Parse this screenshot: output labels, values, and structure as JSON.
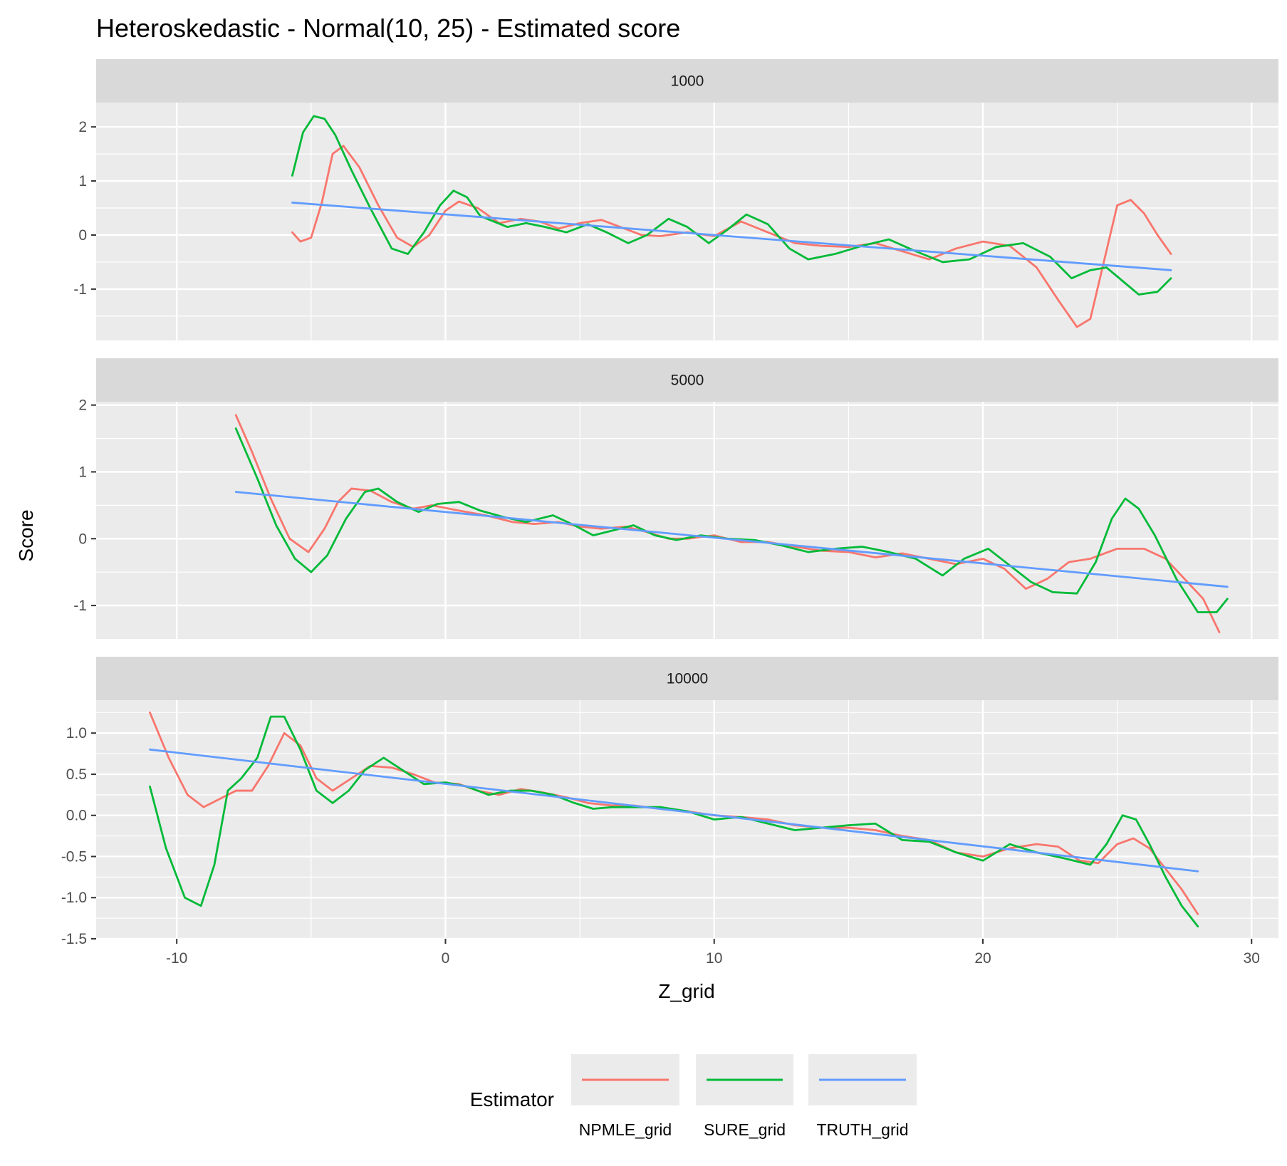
{
  "chart_data": {
    "type": "line",
    "title": "Heteroskedastic - Normal(10, 25) - Estimated score",
    "xlabel": "Z_grid",
    "ylabel": "Score",
    "xlim": [
      -13,
      31
    ],
    "x_ticks": [
      -10,
      0,
      10,
      20,
      30
    ],
    "x_tick_labels": [
      "-10",
      "0",
      "10",
      "20",
      "30"
    ],
    "grid": true,
    "legend": {
      "title": "Estimator",
      "position": "bottom",
      "entries": [
        "NPMLE_grid",
        "SURE_grid",
        "TRUTH_grid"
      ]
    },
    "colors": {
      "NPMLE_grid": "#F8766D",
      "SURE_grid": "#00BA38",
      "TRUTH_grid": "#619CFF"
    },
    "panels": [
      {
        "strip": "1000",
        "ylim": [
          -1.95,
          2.45
        ],
        "y_ticks": [
          -1,
          0,
          1,
          2
        ],
        "y_tick_labels": [
          "-1",
          "0",
          "1",
          "2"
        ],
        "series": [
          {
            "name": "NPMLE_grid",
            "x": [
              -5.7,
              -5.4,
              -5.0,
              -4.6,
              -4.2,
              -3.8,
              -3.2,
              -2.5,
              -1.8,
              -1.2,
              -0.6,
              0.0,
              0.5,
              1.2,
              2.0,
              2.8,
              3.5,
              4.2,
              5.0,
              5.8,
              6.5,
              7.3,
              8.0,
              9.0,
              10.0,
              11.0,
              12.0,
              13.0,
              14.0,
              15.0,
              16.0,
              17.0,
              18.0,
              19.0,
              20.0,
              21.0,
              22.0,
              22.8,
              23.5,
              24.0,
              24.5,
              25.0,
              25.5,
              26.0,
              26.5,
              27.0
            ],
            "y": [
              0.05,
              -0.12,
              -0.05,
              0.6,
              1.5,
              1.65,
              1.25,
              0.55,
              -0.05,
              -0.22,
              0.0,
              0.45,
              0.62,
              0.5,
              0.22,
              0.3,
              0.25,
              0.12,
              0.22,
              0.28,
              0.15,
              0.0,
              -0.02,
              0.05,
              -0.02,
              0.25,
              0.05,
              -0.15,
              -0.2,
              -0.22,
              -0.15,
              -0.3,
              -0.45,
              -0.25,
              -0.12,
              -0.2,
              -0.6,
              -1.2,
              -1.7,
              -1.55,
              -0.5,
              0.55,
              0.65,
              0.4,
              0.0,
              -0.35
            ]
          },
          {
            "name": "SURE_grid",
            "x": [
              -5.7,
              -5.3,
              -4.9,
              -4.5,
              -4.1,
              -3.5,
              -2.8,
              -2.0,
              -1.4,
              -0.8,
              -0.2,
              0.3,
              0.8,
              1.3,
              2.3,
              3.0,
              3.7,
              4.5,
              5.3,
              6.0,
              6.8,
              7.5,
              8.3,
              9.0,
              9.8,
              10.5,
              11.2,
              12.0,
              12.8,
              13.5,
              14.5,
              15.5,
              16.5,
              17.5,
              18.5,
              19.5,
              20.5,
              21.5,
              22.5,
              23.3,
              24.0,
              24.6,
              25.2,
              25.8,
              26.5,
              27.0
            ],
            "y": [
              1.1,
              1.9,
              2.2,
              2.15,
              1.85,
              1.2,
              0.5,
              -0.25,
              -0.35,
              0.05,
              0.55,
              0.82,
              0.7,
              0.35,
              0.15,
              0.22,
              0.15,
              0.05,
              0.2,
              0.05,
              -0.15,
              0.0,
              0.3,
              0.15,
              -0.15,
              0.1,
              0.38,
              0.2,
              -0.25,
              -0.45,
              -0.35,
              -0.2,
              -0.08,
              -0.3,
              -0.5,
              -0.45,
              -0.22,
              -0.15,
              -0.4,
              -0.8,
              -0.65,
              -0.6,
              -0.85,
              -1.1,
              -1.05,
              -0.8
            ]
          },
          {
            "name": "TRUTH_grid",
            "x": [
              -5.7,
              27.0
            ],
            "y": [
              0.6,
              -0.65
            ]
          }
        ]
      },
      {
        "strip": "5000",
        "ylim": [
          -1.5,
          2.05
        ],
        "y_ticks": [
          -1,
          0,
          1,
          2
        ],
        "y_tick_labels": [
          "-1",
          "0",
          "1",
          "2"
        ],
        "series": [
          {
            "name": "NPMLE_grid",
            "x": [
              -7.8,
              -7.2,
              -6.5,
              -5.8,
              -5.1,
              -4.5,
              -4.0,
              -3.5,
              -2.8,
              -2.0,
              -1.2,
              -0.5,
              0.5,
              1.5,
              2.5,
              3.3,
              4.2,
              5.0,
              5.8,
              6.7,
              7.5,
              8.3,
              9.0,
              10.0,
              11.0,
              12.0,
              13.0,
              14.0,
              15.0,
              16.0,
              17.0,
              18.0,
              19.0,
              20.0,
              20.8,
              21.6,
              22.4,
              23.2,
              24.0,
              25.0,
              26.0,
              26.8,
              27.5,
              28.2,
              28.8
            ],
            "y": [
              1.85,
              1.3,
              0.6,
              0.0,
              -0.2,
              0.15,
              0.55,
              0.75,
              0.72,
              0.55,
              0.45,
              0.5,
              0.42,
              0.35,
              0.25,
              0.22,
              0.25,
              0.18,
              0.15,
              0.18,
              0.1,
              0.0,
              0.0,
              0.05,
              -0.05,
              -0.05,
              -0.12,
              -0.18,
              -0.2,
              -0.28,
              -0.22,
              -0.3,
              -0.38,
              -0.3,
              -0.45,
              -0.75,
              -0.6,
              -0.35,
              -0.3,
              -0.15,
              -0.15,
              -0.3,
              -0.6,
              -0.9,
              -1.4
            ]
          },
          {
            "name": "SURE_grid",
            "x": [
              -7.8,
              -7.0,
              -6.3,
              -5.6,
              -5.0,
              -4.4,
              -3.7,
              -3.0,
              -2.5,
              -1.8,
              -1.0,
              -0.3,
              0.5,
              1.3,
              2.2,
              3.0,
              4.0,
              4.8,
              5.5,
              6.2,
              7.0,
              7.8,
              8.6,
              9.5,
              10.5,
              11.5,
              12.5,
              13.5,
              14.5,
              15.5,
              16.5,
              17.5,
              18.5,
              19.3,
              20.2,
              21.0,
              21.8,
              22.6,
              23.5,
              24.2,
              24.8,
              25.3,
              25.8,
              26.4,
              27.2,
              28.0,
              28.7,
              29.1
            ],
            "y": [
              1.65,
              0.9,
              0.2,
              -0.3,
              -0.5,
              -0.25,
              0.3,
              0.7,
              0.75,
              0.55,
              0.4,
              0.52,
              0.55,
              0.42,
              0.32,
              0.25,
              0.35,
              0.2,
              0.05,
              0.12,
              0.2,
              0.05,
              -0.02,
              0.05,
              0.0,
              -0.02,
              -0.1,
              -0.2,
              -0.15,
              -0.12,
              -0.2,
              -0.3,
              -0.55,
              -0.3,
              -0.15,
              -0.4,
              -0.65,
              -0.8,
              -0.82,
              -0.35,
              0.3,
              0.6,
              0.45,
              0.05,
              -0.6,
              -1.1,
              -1.1,
              -0.9
            ]
          },
          {
            "name": "TRUTH_grid",
            "x": [
              -7.8,
              29.1
            ],
            "y": [
              0.7,
              -0.72
            ]
          }
        ]
      },
      {
        "strip": "10000",
        "ylim": [
          -1.5,
          1.4
        ],
        "y_ticks": [
          -1.5,
          -1.0,
          -0.5,
          0.0,
          0.5,
          1.0
        ],
        "y_tick_labels": [
          "-1.5",
          "-1.0",
          "-0.5",
          "0.0",
          "0.5",
          "1.0"
        ],
        "series": [
          {
            "name": "NPMLE_grid",
            "x": [
              -11.0,
              -10.3,
              -9.6,
              -9.0,
              -8.4,
              -7.8,
              -7.2,
              -6.6,
              -6.0,
              -5.4,
              -4.8,
              -4.2,
              -3.5,
              -2.8,
              -2.0,
              -1.2,
              -0.4,
              0.5,
              1.2,
              2.0,
              2.8,
              3.6,
              4.5,
              5.3,
              6.2,
              7.0,
              8.0,
              9.0,
              10.0,
              11.0,
              12.0,
              13.0,
              14.0,
              15.0,
              16.0,
              17.0,
              18.0,
              19.0,
              20.0,
              21.0,
              22.0,
              22.8,
              23.6,
              24.3,
              25.0,
              25.6,
              26.2,
              26.8,
              27.4,
              28.0
            ],
            "y": [
              1.25,
              0.7,
              0.25,
              0.1,
              0.2,
              0.3,
              0.3,
              0.6,
              1.0,
              0.85,
              0.45,
              0.3,
              0.45,
              0.6,
              0.58,
              0.5,
              0.4,
              0.38,
              0.3,
              0.25,
              0.32,
              0.28,
              0.22,
              0.15,
              0.12,
              0.12,
              0.08,
              0.05,
              0.0,
              -0.02,
              -0.05,
              -0.12,
              -0.15,
              -0.15,
              -0.18,
              -0.25,
              -0.3,
              -0.45,
              -0.5,
              -0.4,
              -0.35,
              -0.38,
              -0.55,
              -0.58,
              -0.35,
              -0.28,
              -0.4,
              -0.65,
              -0.9,
              -1.2
            ]
          },
          {
            "name": "SURE_grid",
            "x": [
              -11.0,
              -10.4,
              -9.7,
              -9.1,
              -8.6,
              -8.1,
              -7.6,
              -7.0,
              -6.5,
              -6.0,
              -5.4,
              -4.8,
              -4.2,
              -3.6,
              -3.0,
              -2.3,
              -1.6,
              -0.8,
              0.0,
              0.8,
              1.6,
              2.4,
              3.2,
              4.0,
              4.8,
              5.5,
              6.2,
              7.0,
              8.0,
              9.0,
              10.0,
              11.0,
              12.0,
              13.0,
              14.0,
              15.0,
              16.0,
              17.0,
              18.0,
              19.0,
              20.0,
              21.0,
              22.0,
              23.0,
              24.0,
              24.6,
              25.2,
              25.7,
              26.2,
              26.8,
              27.4,
              28.0
            ],
            "y": [
              0.35,
              -0.4,
              -1.0,
              -1.1,
              -0.6,
              0.3,
              0.45,
              0.7,
              1.2,
              1.2,
              0.8,
              0.3,
              0.15,
              0.3,
              0.55,
              0.7,
              0.55,
              0.38,
              0.4,
              0.35,
              0.25,
              0.3,
              0.3,
              0.25,
              0.15,
              0.08,
              0.1,
              0.1,
              0.1,
              0.05,
              -0.05,
              -0.02,
              -0.1,
              -0.18,
              -0.15,
              -0.12,
              -0.1,
              -0.3,
              -0.32,
              -0.45,
              -0.55,
              -0.35,
              -0.45,
              -0.52,
              -0.6,
              -0.35,
              0.0,
              -0.05,
              -0.35,
              -0.75,
              -1.1,
              -1.35
            ]
          },
          {
            "name": "TRUTH_grid",
            "x": [
              -11.0,
              28.0
            ],
            "y": [
              0.8,
              -0.68
            ]
          }
        ]
      }
    ]
  }
}
